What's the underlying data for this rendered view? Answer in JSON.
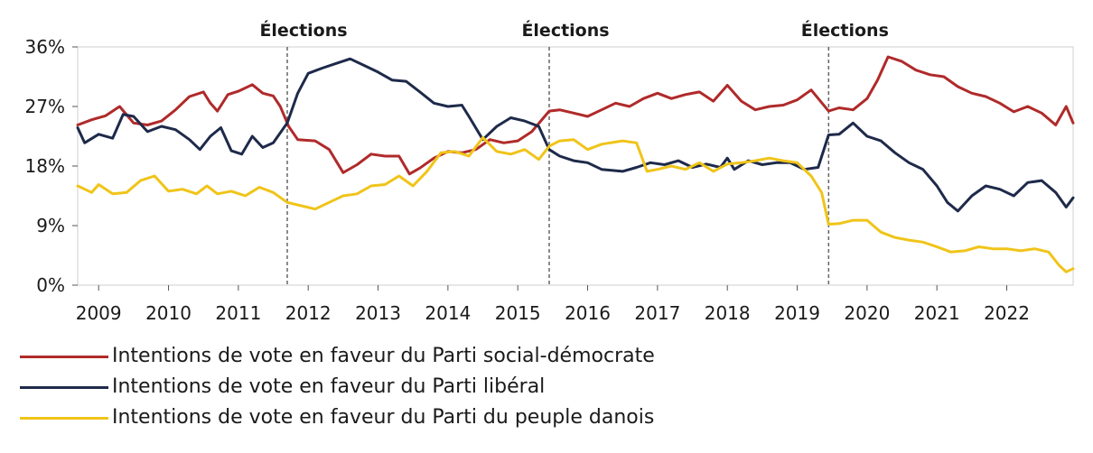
{
  "chart_data": {
    "type": "line",
    "title": "",
    "xlabel": "",
    "ylabel": "",
    "xlim": [
      2008.7,
      2022.95
    ],
    "ylim": [
      0,
      36
    ],
    "yticks": [
      0,
      9,
      18,
      27,
      36
    ],
    "ytick_labels": [
      "0%",
      "9%",
      "18%",
      "27%",
      "36%"
    ],
    "xticks": [
      2009,
      2010,
      2011,
      2012,
      2013,
      2014,
      2015,
      2016,
      2017,
      2018,
      2019,
      2020,
      2021,
      2022
    ],
    "xtick_labels": [
      "2009",
      "2010",
      "2011",
      "2012",
      "2013",
      "2014",
      "2015",
      "2016",
      "2017",
      "2018",
      "2019",
      "2020",
      "2021",
      "2022"
    ],
    "grid": false,
    "legend_position": "bottom-left",
    "events": [
      {
        "x": 2011.7,
        "label": "Élections"
      },
      {
        "x": 2015.45,
        "label": "Élections"
      },
      {
        "x": 2019.45,
        "label": "Élections"
      }
    ],
    "series": [
      {
        "name": "Intentions de vote en faveur du Parti social-démocrate",
        "color": "#b02a2a",
        "points": [
          [
            2008.7,
            24.2
          ],
          [
            2008.9,
            25.0
          ],
          [
            2009.1,
            25.6
          ],
          [
            2009.3,
            27.0
          ],
          [
            2009.5,
            24.5
          ],
          [
            2009.7,
            24.2
          ],
          [
            2009.9,
            24.8
          ],
          [
            2010.1,
            26.5
          ],
          [
            2010.3,
            28.5
          ],
          [
            2010.5,
            29.2
          ],
          [
            2010.6,
            27.5
          ],
          [
            2010.7,
            26.3
          ],
          [
            2010.85,
            28.8
          ],
          [
            2011.0,
            29.3
          ],
          [
            2011.2,
            30.3
          ],
          [
            2011.35,
            29.0
          ],
          [
            2011.5,
            28.6
          ],
          [
            2011.6,
            27.0
          ],
          [
            2011.72,
            24.0
          ],
          [
            2011.85,
            22.0
          ],
          [
            2012.1,
            21.8
          ],
          [
            2012.3,
            20.5
          ],
          [
            2012.5,
            17.0
          ],
          [
            2012.7,
            18.2
          ],
          [
            2012.9,
            19.8
          ],
          [
            2013.1,
            19.5
          ],
          [
            2013.3,
            19.5
          ],
          [
            2013.45,
            16.8
          ],
          [
            2013.6,
            17.7
          ],
          [
            2013.8,
            19.2
          ],
          [
            2014.0,
            20.2
          ],
          [
            2014.2,
            20.0
          ],
          [
            2014.4,
            20.5
          ],
          [
            2014.6,
            22.0
          ],
          [
            2014.8,
            21.5
          ],
          [
            2015.0,
            21.8
          ],
          [
            2015.2,
            23.2
          ],
          [
            2015.45,
            26.3
          ],
          [
            2015.6,
            26.5
          ],
          [
            2015.8,
            26.0
          ],
          [
            2016.0,
            25.5
          ],
          [
            2016.2,
            26.5
          ],
          [
            2016.4,
            27.5
          ],
          [
            2016.6,
            27.0
          ],
          [
            2016.8,
            28.2
          ],
          [
            2017.0,
            29.0
          ],
          [
            2017.2,
            28.2
          ],
          [
            2017.4,
            28.8
          ],
          [
            2017.6,
            29.2
          ],
          [
            2017.8,
            27.8
          ],
          [
            2018.0,
            30.2
          ],
          [
            2018.2,
            27.8
          ],
          [
            2018.4,
            26.5
          ],
          [
            2018.6,
            27.0
          ],
          [
            2018.8,
            27.2
          ],
          [
            2019.0,
            28.0
          ],
          [
            2019.2,
            29.5
          ],
          [
            2019.45,
            26.3
          ],
          [
            2019.6,
            26.8
          ],
          [
            2019.8,
            26.5
          ],
          [
            2020.0,
            28.2
          ],
          [
            2020.15,
            31.0
          ],
          [
            2020.3,
            34.5
          ],
          [
            2020.5,
            33.8
          ],
          [
            2020.7,
            32.5
          ],
          [
            2020.9,
            31.8
          ],
          [
            2021.1,
            31.5
          ],
          [
            2021.3,
            30.0
          ],
          [
            2021.5,
            29.0
          ],
          [
            2021.7,
            28.5
          ],
          [
            2021.9,
            27.5
          ],
          [
            2022.1,
            26.2
          ],
          [
            2022.3,
            27.0
          ],
          [
            2022.5,
            26.0
          ],
          [
            2022.7,
            24.2
          ],
          [
            2022.85,
            27.0
          ],
          [
            2022.95,
            24.5
          ]
        ]
      },
      {
        "name": "Intentions de vote en faveur du Parti libéral",
        "color": "#1e2a4a",
        "points": [
          [
            2008.7,
            23.8
          ],
          [
            2008.8,
            21.5
          ],
          [
            2009.0,
            22.8
          ],
          [
            2009.2,
            22.2
          ],
          [
            2009.35,
            25.8
          ],
          [
            2009.5,
            25.5
          ],
          [
            2009.7,
            23.2
          ],
          [
            2009.9,
            24.0
          ],
          [
            2010.1,
            23.5
          ],
          [
            2010.3,
            22.0
          ],
          [
            2010.45,
            20.5
          ],
          [
            2010.6,
            22.5
          ],
          [
            2010.75,
            23.8
          ],
          [
            2010.9,
            20.3
          ],
          [
            2011.05,
            19.8
          ],
          [
            2011.2,
            22.5
          ],
          [
            2011.35,
            20.8
          ],
          [
            2011.5,
            21.5
          ],
          [
            2011.7,
            24.5
          ],
          [
            2011.85,
            29.0
          ],
          [
            2012.0,
            32.0
          ],
          [
            2012.2,
            32.8
          ],
          [
            2012.4,
            33.5
          ],
          [
            2012.6,
            34.2
          ],
          [
            2012.8,
            33.2
          ],
          [
            2013.0,
            32.2
          ],
          [
            2013.2,
            31.0
          ],
          [
            2013.4,
            30.8
          ],
          [
            2013.6,
            29.2
          ],
          [
            2013.8,
            27.5
          ],
          [
            2014.0,
            27.0
          ],
          [
            2014.2,
            27.2
          ],
          [
            2014.3,
            25.5
          ],
          [
            2014.5,
            22.0
          ],
          [
            2014.7,
            24.0
          ],
          [
            2014.9,
            25.3
          ],
          [
            2015.1,
            24.8
          ],
          [
            2015.3,
            24.0
          ],
          [
            2015.45,
            20.5
          ],
          [
            2015.6,
            19.5
          ],
          [
            2015.8,
            18.8
          ],
          [
            2016.0,
            18.5
          ],
          [
            2016.2,
            17.5
          ],
          [
            2016.5,
            17.2
          ],
          [
            2016.7,
            17.8
          ],
          [
            2016.9,
            18.5
          ],
          [
            2017.1,
            18.2
          ],
          [
            2017.3,
            18.8
          ],
          [
            2017.5,
            17.8
          ],
          [
            2017.7,
            18.3
          ],
          [
            2017.9,
            17.8
          ],
          [
            2018.0,
            19.2
          ],
          [
            2018.1,
            17.5
          ],
          [
            2018.3,
            18.8
          ],
          [
            2018.5,
            18.2
          ],
          [
            2018.7,
            18.5
          ],
          [
            2018.9,
            18.5
          ],
          [
            2019.1,
            17.5
          ],
          [
            2019.3,
            17.8
          ],
          [
            2019.45,
            22.7
          ],
          [
            2019.6,
            22.8
          ],
          [
            2019.8,
            24.5
          ],
          [
            2020.0,
            22.5
          ],
          [
            2020.2,
            21.8
          ],
          [
            2020.4,
            20.0
          ],
          [
            2020.6,
            18.5
          ],
          [
            2020.8,
            17.5
          ],
          [
            2021.0,
            15.0
          ],
          [
            2021.15,
            12.5
          ],
          [
            2021.3,
            11.2
          ],
          [
            2021.5,
            13.5
          ],
          [
            2021.7,
            15.0
          ],
          [
            2021.9,
            14.5
          ],
          [
            2022.1,
            13.5
          ],
          [
            2022.3,
            15.5
          ],
          [
            2022.5,
            15.8
          ],
          [
            2022.7,
            14.0
          ],
          [
            2022.85,
            11.8
          ],
          [
            2022.95,
            13.2
          ]
        ]
      },
      {
        "name": "Intentions de vote en faveur du Parti du peuple danois",
        "color": "#f0c419",
        "points": [
          [
            2008.7,
            15.0
          ],
          [
            2008.9,
            14.0
          ],
          [
            2009.0,
            15.2
          ],
          [
            2009.2,
            13.8
          ],
          [
            2009.4,
            14.0
          ],
          [
            2009.6,
            15.8
          ],
          [
            2009.8,
            16.5
          ],
          [
            2010.0,
            14.2
          ],
          [
            2010.2,
            14.5
          ],
          [
            2010.4,
            13.8
          ],
          [
            2010.55,
            15.0
          ],
          [
            2010.7,
            13.8
          ],
          [
            2010.9,
            14.2
          ],
          [
            2011.1,
            13.5
          ],
          [
            2011.3,
            14.8
          ],
          [
            2011.5,
            14.0
          ],
          [
            2011.7,
            12.5
          ],
          [
            2011.9,
            12.0
          ],
          [
            2012.1,
            11.5
          ],
          [
            2012.3,
            12.5
          ],
          [
            2012.5,
            13.5
          ],
          [
            2012.7,
            13.8
          ],
          [
            2012.9,
            15.0
          ],
          [
            2013.1,
            15.2
          ],
          [
            2013.3,
            16.5
          ],
          [
            2013.5,
            15.0
          ],
          [
            2013.7,
            17.2
          ],
          [
            2013.9,
            20.0
          ],
          [
            2014.1,
            20.2
          ],
          [
            2014.3,
            19.5
          ],
          [
            2014.5,
            22.3
          ],
          [
            2014.7,
            20.2
          ],
          [
            2014.9,
            19.8
          ],
          [
            2015.1,
            20.5
          ],
          [
            2015.3,
            19.0
          ],
          [
            2015.45,
            21.0
          ],
          [
            2015.6,
            21.8
          ],
          [
            2015.8,
            22.0
          ],
          [
            2016.0,
            20.5
          ],
          [
            2016.2,
            21.3
          ],
          [
            2016.5,
            21.8
          ],
          [
            2016.7,
            21.5
          ],
          [
            2016.85,
            17.2
          ],
          [
            2017.0,
            17.5
          ],
          [
            2017.2,
            18.0
          ],
          [
            2017.4,
            17.5
          ],
          [
            2017.6,
            18.5
          ],
          [
            2017.8,
            17.2
          ],
          [
            2018.0,
            18.3
          ],
          [
            2018.2,
            18.5
          ],
          [
            2018.4,
            18.8
          ],
          [
            2018.6,
            19.2
          ],
          [
            2018.8,
            18.8
          ],
          [
            2019.0,
            18.5
          ],
          [
            2019.2,
            16.5
          ],
          [
            2019.35,
            14.0
          ],
          [
            2019.45,
            9.2
          ],
          [
            2019.6,
            9.3
          ],
          [
            2019.8,
            9.8
          ],
          [
            2020.0,
            9.8
          ],
          [
            2020.2,
            8.0
          ],
          [
            2020.4,
            7.2
          ],
          [
            2020.6,
            6.8
          ],
          [
            2020.8,
            6.5
          ],
          [
            2021.0,
            5.8
          ],
          [
            2021.2,
            5.0
          ],
          [
            2021.4,
            5.2
          ],
          [
            2021.6,
            5.8
          ],
          [
            2021.8,
            5.5
          ],
          [
            2022.0,
            5.5
          ],
          [
            2022.2,
            5.2
          ],
          [
            2022.4,
            5.5
          ],
          [
            2022.6,
            5.0
          ],
          [
            2022.75,
            3.0
          ],
          [
            2022.85,
            2.0
          ],
          [
            2022.95,
            2.5
          ]
        ]
      }
    ]
  }
}
